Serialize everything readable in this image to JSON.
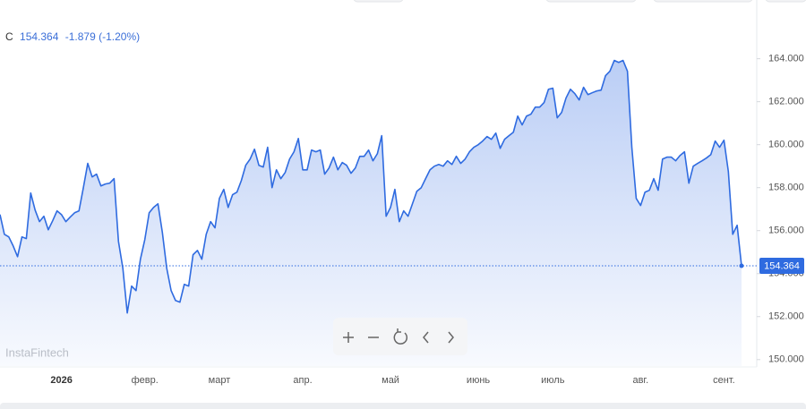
{
  "chart_data": {
    "type": "area",
    "symbol": "C",
    "change": "-1.879 (-1.20%)",
    "watermark": "InstaFintech",
    "color": "#2f6be0",
    "ylim": [
      149.7,
      165.9
    ],
    "yticks": [
      {
        "value": 150,
        "label": "150.000"
      },
      {
        "value": 152,
        "label": "152.000"
      },
      {
        "value": 154,
        "label": "154.000"
      },
      {
        "value": 156,
        "label": "156.000"
      },
      {
        "value": 158,
        "label": "158.000"
      },
      {
        "value": 160,
        "label": "160.000"
      },
      {
        "value": 162,
        "label": "162.000"
      },
      {
        "value": 164,
        "label": "164.000"
      }
    ],
    "grid": false,
    "categories": [
      null,
      null,
      null,
      null,
      null,
      null,
      null,
      null,
      null,
      null,
      null,
      null,
      null,
      null,
      "2026",
      null,
      null,
      null,
      null,
      null,
      null,
      null,
      null,
      null,
      null,
      null,
      null,
      null,
      null,
      null,
      null,
      null,
      null,
      "февр.",
      null,
      null,
      null,
      null,
      null,
      null,
      null,
      null,
      null,
      null,
      null,
      null,
      null,
      null,
      null,
      null,
      "март",
      null,
      null,
      null,
      null,
      null,
      null,
      null,
      null,
      null,
      null,
      null,
      null,
      null,
      null,
      null,
      null,
      null,
      null,
      "апр.",
      null,
      null,
      null,
      null,
      null,
      null,
      null,
      null,
      null,
      null,
      null,
      null,
      null,
      null,
      null,
      null,
      null,
      null,
      null,
      "май",
      null,
      null,
      null,
      null,
      null,
      null,
      null,
      null,
      null,
      null,
      null,
      null,
      null,
      null,
      null,
      null,
      null,
      null,
      null,
      "июнь",
      null,
      null,
      null,
      null,
      null,
      null,
      null,
      null,
      null,
      null,
      null,
      null,
      null,
      null,
      null,
      null,
      "июль",
      null,
      null,
      null,
      null,
      null,
      null,
      null,
      null,
      null,
      null,
      null,
      null,
      null,
      null,
      null,
      null,
      null,
      null,
      null,
      "авг.",
      null,
      null,
      null,
      null,
      null,
      null,
      null,
      null,
      null,
      null,
      null,
      null,
      null,
      null,
      null,
      null,
      null,
      null,
      "сент.",
      null,
      null,
      null,
      null
    ],
    "values": [
      156.75,
      155.83,
      155.71,
      155.29,
      154.79,
      155.71,
      155.63,
      157.75,
      156.96,
      156.42,
      156.67,
      156.04,
      156.46,
      156.92,
      156.75,
      156.42,
      156.63,
      156.83,
      156.92,
      158,
      159.13,
      158.5,
      158.63,
      158.08,
      158.17,
      158.21,
      158.42,
      155.5,
      154.25,
      152.17,
      153.42,
      153.21,
      154.67,
      155.58,
      156.83,
      157.08,
      157.25,
      155.92,
      154.25,
      153.21,
      152.75,
      152.67,
      153.5,
      153.42,
      154.88,
      155.08,
      154.67,
      155.83,
      156.42,
      156.13,
      157.5,
      157.92,
      157.08,
      157.67,
      157.79,
      158.33,
      159.04,
      159.33,
      159.79,
      159.04,
      158.96,
      159.88,
      158,
      158.83,
      158.42,
      158.71,
      159.33,
      159.67,
      160.29,
      158.83,
      158.83,
      159.75,
      159.67,
      159.75,
      158.63,
      158.92,
      159.42,
      158.83,
      159.17,
      159.04,
      158.67,
      158.92,
      159.46,
      159.46,
      159.75,
      159.25,
      159.58,
      160.42,
      156.67,
      157.08,
      157.92,
      156.42,
      156.92,
      156.67,
      157.25,
      157.83,
      158,
      158.42,
      158.83,
      159,
      159.08,
      159,
      159.25,
      159.08,
      159.46,
      159.13,
      159.33,
      159.67,
      159.88,
      160,
      160.17,
      160.38,
      160.25,
      160.54,
      159.83,
      160.25,
      160.42,
      160.58,
      161.33,
      160.92,
      161.33,
      161.42,
      161.75,
      161.75,
      161.96,
      162.58,
      162.63,
      161.25,
      161.5,
      162.17,
      162.58,
      162.38,
      162.08,
      162.67,
      162.33,
      162.42,
      162.5,
      162.54,
      163.21,
      163.42,
      163.92,
      163.83,
      163.92,
      163.42,
      159.88,
      157.5,
      157.17,
      157.79,
      157.88,
      158.42,
      157.88,
      159.33,
      159.42,
      159.42,
      159.25,
      159.5,
      159.67,
      158.21,
      159,
      159.13,
      159.25,
      159.38,
      159.54,
      160.17,
      159.88,
      160.21,
      158.75,
      155.83,
      156.25,
      154.364
    ]
  }
}
